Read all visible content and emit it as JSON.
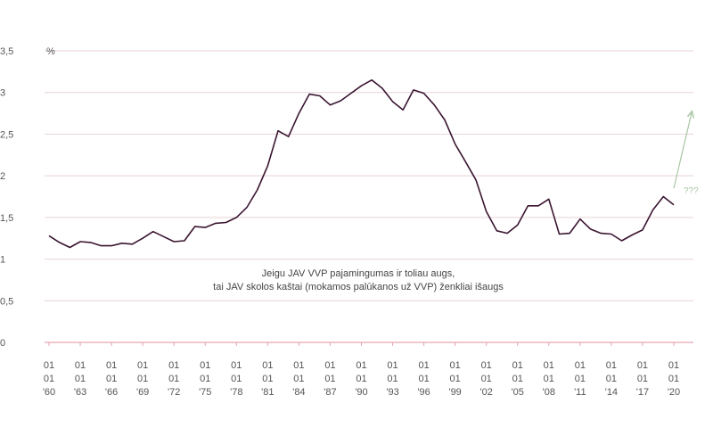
{
  "chart_data": {
    "type": "line",
    "unit_label": "%",
    "y_ticks": [
      "0",
      "0,5",
      "1",
      "1,5",
      "2",
      "2,5",
      "3",
      "3,5"
    ],
    "y_tick_values": [
      0,
      0.5,
      1,
      1.5,
      2,
      2.5,
      3,
      3.5
    ],
    "ylim": [
      0,
      3.5
    ],
    "xlim": [
      1960,
      2020
    ],
    "x_ticks": [
      {
        "x": 1960,
        "label": [
          "01",
          "01",
          "'60"
        ]
      },
      {
        "x": 1963,
        "label": [
          "01",
          "01",
          "'63"
        ]
      },
      {
        "x": 1966,
        "label": [
          "01",
          "01",
          "'66"
        ]
      },
      {
        "x": 1969,
        "label": [
          "01",
          "01",
          "'69"
        ]
      },
      {
        "x": 1972,
        "label": [
          "01",
          "01",
          "'72"
        ]
      },
      {
        "x": 1975,
        "label": [
          "01",
          "01",
          "'75"
        ]
      },
      {
        "x": 1978,
        "label": [
          "01",
          "01",
          "'78"
        ]
      },
      {
        "x": 1981,
        "label": [
          "01",
          "01",
          "'81"
        ]
      },
      {
        "x": 1984,
        "label": [
          "01",
          "01",
          "'84"
        ]
      },
      {
        "x": 1987,
        "label": [
          "01",
          "01",
          "'87"
        ]
      },
      {
        "x": 1990,
        "label": [
          "01",
          "01",
          "'90"
        ]
      },
      {
        "x": 1993,
        "label": [
          "01",
          "01",
          "'93"
        ]
      },
      {
        "x": 1996,
        "label": [
          "01",
          "01",
          "'96"
        ]
      },
      {
        "x": 1999,
        "label": [
          "01",
          "01",
          "'99"
        ]
      },
      {
        "x": 2002,
        "label": [
          "01",
          "01",
          "'02"
        ]
      },
      {
        "x": 2005,
        "label": [
          "01",
          "01",
          "'05"
        ]
      },
      {
        "x": 2008,
        "label": [
          "01",
          "01",
          "'08"
        ]
      },
      {
        "x": 2011,
        "label": [
          "01",
          "01",
          "'11"
        ]
      },
      {
        "x": 2014,
        "label": [
          "01",
          "01",
          "'14"
        ]
      },
      {
        "x": 2017,
        "label": [
          "01",
          "01",
          "'17"
        ]
      },
      {
        "x": 2020,
        "label": [
          "01",
          "01",
          "'20"
        ]
      }
    ],
    "series": [
      {
        "color": "#3a1530",
        "x": [
          1960,
          1961,
          1962,
          1963,
          1964,
          1965,
          1966,
          1967,
          1968,
          1969,
          1970,
          1971,
          1972,
          1973,
          1974,
          1975,
          1976,
          1977,
          1978,
          1979,
          1980,
          1981,
          1982,
          1983,
          1984,
          1985,
          1986,
          1987,
          1988,
          1989,
          1990,
          1991,
          1992,
          1993,
          1994,
          1995,
          1996,
          1997,
          1998,
          1999,
          2000,
          2001,
          2002,
          2003,
          2004,
          2005,
          2006,
          2007,
          2008,
          2009,
          2010,
          2011,
          2012,
          2013,
          2014,
          2015,
          2016,
          2017,
          2018,
          2019,
          2020
        ],
        "y": [
          1.28,
          1.2,
          1.14,
          1.21,
          1.2,
          1.16,
          1.16,
          1.19,
          1.18,
          1.25,
          1.33,
          1.27,
          1.21,
          1.22,
          1.39,
          1.38,
          1.43,
          1.44,
          1.5,
          1.62,
          1.83,
          2.12,
          2.54,
          2.47,
          2.75,
          2.98,
          2.96,
          2.85,
          2.9,
          2.99,
          3.08,
          3.15,
          3.05,
          2.89,
          2.79,
          3.03,
          2.99,
          2.85,
          2.67,
          2.38,
          2.17,
          1.95,
          1.57,
          1.34,
          1.31,
          1.41,
          1.64,
          1.64,
          1.72,
          1.3,
          1.31,
          1.48,
          1.36,
          1.31,
          1.3,
          1.22,
          1.29,
          1.35,
          1.59,
          1.75,
          1.65
        ]
      }
    ],
    "projection": {
      "x": [
        2020,
        2021.7
      ],
      "y": [
        1.85,
        2.75
      ],
      "color": "#a9c7a4",
      "label": "???"
    },
    "annotation": [
      "Jeigu JAV VVP pajamingumas ir toliau augs,",
      "tai JAV skolos kaštai (mokamos palūkanos už VVP) ženkliai išaugs"
    ],
    "colors": {
      "grid": "#e8d2d8",
      "zero_line": "#e6a5b3",
      "tick_text": "#555555",
      "projection": "#a9c7a4",
      "line": "#3a1530"
    },
    "grid": true
  }
}
